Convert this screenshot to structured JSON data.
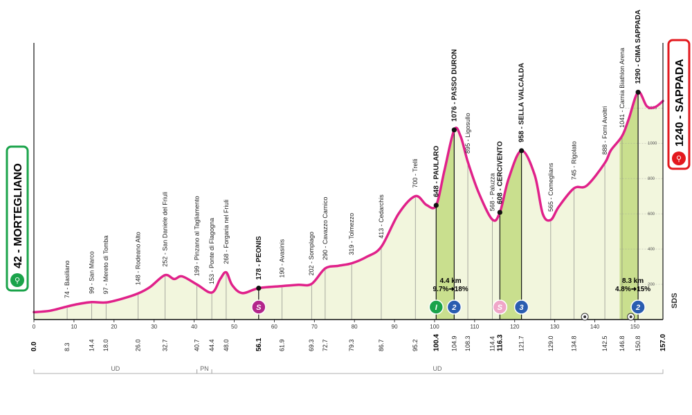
{
  "chart_data": {
    "type": "area",
    "colors": {
      "profile": "#e0218a",
      "fill": "#f2f6dd",
      "climb_fill": "#c9df8e",
      "start": "#1aa34a",
      "finish": "#e3191e",
      "sprint": "#b3268b",
      "kom": "#2a5db0",
      "cross": "#e91e8c"
    },
    "start": {
      "altitude": "42",
      "name": "MORTEGLIANO"
    },
    "finish": {
      "altitude": "1240",
      "name": "SAPPADA"
    },
    "xlim": [
      0,
      157.0
    ],
    "ylim": [
      0,
      1350
    ],
    "x_ticks": [
      0,
      10,
      20,
      30,
      40,
      50,
      60,
      70,
      80,
      90,
      100,
      110,
      120,
      130,
      140,
      150
    ],
    "y_ticks": [
      200,
      400,
      600,
      800,
      1000,
      1200
    ],
    "profile": [
      {
        "x": 0,
        "y": 42
      },
      {
        "x": 4,
        "y": 50
      },
      {
        "x": 8.3,
        "y": 74
      },
      {
        "x": 11,
        "y": 88
      },
      {
        "x": 14.4,
        "y": 99
      },
      {
        "x": 18.0,
        "y": 97
      },
      {
        "x": 22,
        "y": 118
      },
      {
        "x": 26.0,
        "y": 148
      },
      {
        "x": 29,
        "y": 185
      },
      {
        "x": 32.7,
        "y": 252
      },
      {
        "x": 35,
        "y": 230
      },
      {
        "x": 37,
        "y": 245
      },
      {
        "x": 40.7,
        "y": 199
      },
      {
        "x": 44.4,
        "y": 153
      },
      {
        "x": 46.5,
        "y": 230
      },
      {
        "x": 48.0,
        "y": 268
      },
      {
        "x": 49.5,
        "y": 195
      },
      {
        "x": 52,
        "y": 150
      },
      {
        "x": 56.1,
        "y": 178
      },
      {
        "x": 61.9,
        "y": 190
      },
      {
        "x": 66,
        "y": 197
      },
      {
        "x": 69.3,
        "y": 202
      },
      {
        "x": 72.7,
        "y": 290
      },
      {
        "x": 76,
        "y": 305
      },
      {
        "x": 79.3,
        "y": 319
      },
      {
        "x": 83,
        "y": 355
      },
      {
        "x": 86.7,
        "y": 413
      },
      {
        "x": 91,
        "y": 600
      },
      {
        "x": 95.2,
        "y": 700
      },
      {
        "x": 98,
        "y": 650
      },
      {
        "x": 100.4,
        "y": 648
      },
      {
        "x": 102.5,
        "y": 850
      },
      {
        "x": 104.9,
        "y": 1076
      },
      {
        "x": 106.5,
        "y": 1040
      },
      {
        "x": 108.3,
        "y": 895
      },
      {
        "x": 111,
        "y": 720
      },
      {
        "x": 114.4,
        "y": 568
      },
      {
        "x": 116.3,
        "y": 608
      },
      {
        "x": 118.5,
        "y": 800
      },
      {
        "x": 121.7,
        "y": 958
      },
      {
        "x": 125,
        "y": 820
      },
      {
        "x": 127,
        "y": 600
      },
      {
        "x": 129.0,
        "y": 565
      },
      {
        "x": 131,
        "y": 640
      },
      {
        "x": 134.8,
        "y": 745
      },
      {
        "x": 138,
        "y": 760
      },
      {
        "x": 142.5,
        "y": 888
      },
      {
        "x": 144,
        "y": 960
      },
      {
        "x": 146.8,
        "y": 1041
      },
      {
        "x": 148.5,
        "y": 1140
      },
      {
        "x": 150.8,
        "y": 1290
      },
      {
        "x": 153,
        "y": 1210
      },
      {
        "x": 155,
        "y": 1205
      },
      {
        "x": 157.0,
        "y": 1240
      }
    ],
    "climb_zones": [
      [
        100.4,
        104.9
      ],
      [
        116.3,
        121.7
      ],
      [
        146.2,
        150.8
      ]
    ],
    "locations": [
      {
        "x": 8.3,
        "alt": "74",
        "name": "Basiliano",
        "type": "normal"
      },
      {
        "x": 14.4,
        "alt": "99",
        "name": "San Marco",
        "type": "normal"
      },
      {
        "x": 18.0,
        "alt": "97",
        "name": "Mereto di Tomba",
        "type": "normal"
      },
      {
        "x": 26.0,
        "alt": "148",
        "name": "Rodeano Alto",
        "type": "normal"
      },
      {
        "x": 32.7,
        "alt": "252",
        "name": "San Daniele del Friuli",
        "type": "normal"
      },
      {
        "x": 40.7,
        "alt": "199",
        "name": "Pinzano al Tagliamento",
        "type": "normal"
      },
      {
        "x": 44.4,
        "alt": "153",
        "name": "Ponte di Flagogna",
        "type": "normal"
      },
      {
        "x": 48.0,
        "alt": "268",
        "name": "Forgaria nel Friuli",
        "type": "normal"
      },
      {
        "x": 56.1,
        "alt": "178",
        "name": "PEONIS",
        "type": "bold"
      },
      {
        "x": 61.9,
        "alt": "190",
        "name": "Avasinis",
        "type": "normal"
      },
      {
        "x": 69.3,
        "alt": "202",
        "name": "Somplago",
        "type": "normal"
      },
      {
        "x": 72.7,
        "alt": "290",
        "name": "Cavazzo Carnico",
        "type": "normal"
      },
      {
        "x": 79.3,
        "alt": "319",
        "name": "Tolmezzo",
        "type": "normal"
      },
      {
        "x": 86.7,
        "alt": "413",
        "name": "Cedarchis",
        "type": "normal"
      },
      {
        "x": 95.2,
        "alt": "700",
        "name": "Trelli",
        "type": "normal"
      },
      {
        "x": 100.4,
        "alt": "648",
        "name": "PAULARO",
        "type": "bold"
      },
      {
        "x": 104.9,
        "alt": "1076",
        "name": "PASSO DURON",
        "type": "bold"
      },
      {
        "x": 108.3,
        "alt": "895",
        "name": "Ligosullo",
        "type": "normal"
      },
      {
        "x": 114.4,
        "alt": "568",
        "name": "Paluzza",
        "type": "normal"
      },
      {
        "x": 116.3,
        "alt": "608",
        "name": "CERCIVENTO",
        "type": "bold"
      },
      {
        "x": 121.7,
        "alt": "958",
        "name": "SELLA VALCALDA",
        "type": "bold"
      },
      {
        "x": 129.0,
        "alt": "565",
        "name": "Comeglians",
        "type": "normal"
      },
      {
        "x": 134.8,
        "alt": "745",
        "name": "Rigolato",
        "type": "normal"
      },
      {
        "x": 142.5,
        "alt": "888",
        "name": "Forni Avoltri",
        "type": "normal"
      },
      {
        "x": 146.8,
        "alt": "1041",
        "name": "Carnia Biathlon Arena",
        "type": "normal"
      },
      {
        "x": 150.8,
        "alt": "1290",
        "name": "CIMA SAPPADA",
        "type": "bold"
      }
    ],
    "bold_points": [
      56.1,
      100.4,
      104.9,
      116.3,
      121.7,
      150.8
    ],
    "km_points": [
      {
        "x": 0,
        "label": "0.0",
        "bold": true
      },
      {
        "x": 8.3,
        "label": "8.3",
        "bold": false
      },
      {
        "x": 14.4,
        "label": "14.4",
        "bold": false
      },
      {
        "x": 18.0,
        "label": "18.0",
        "bold": false
      },
      {
        "x": 26.0,
        "label": "26.0",
        "bold": false
      },
      {
        "x": 32.7,
        "label": "32.7",
        "bold": false
      },
      {
        "x": 40.7,
        "label": "40.7",
        "bold": false
      },
      {
        "x": 44.4,
        "label": "44.4",
        "bold": false
      },
      {
        "x": 48.0,
        "label": "48.0",
        "bold": false
      },
      {
        "x": 56.1,
        "label": "56.1",
        "bold": true
      },
      {
        "x": 61.9,
        "label": "61.9",
        "bold": false
      },
      {
        "x": 69.3,
        "label": "69.3",
        "bold": false
      },
      {
        "x": 72.7,
        "label": "72.7",
        "bold": false
      },
      {
        "x": 79.3,
        "label": "79.3",
        "bold": false
      },
      {
        "x": 86.7,
        "label": "86.7",
        "bold": false
      },
      {
        "x": 95.2,
        "label": "95.2",
        "bold": false
      },
      {
        "x": 100.4,
        "label": "100.4",
        "bold": true
      },
      {
        "x": 104.9,
        "label": "104.9",
        "bold": false
      },
      {
        "x": 108.3,
        "label": "108.3",
        "bold": false
      },
      {
        "x": 114.4,
        "label": "114.4",
        "bold": false
      },
      {
        "x": 116.3,
        "label": "116.3",
        "bold": true
      },
      {
        "x": 121.7,
        "label": "121.7",
        "bold": false
      },
      {
        "x": 129.0,
        "label": "129.0",
        "bold": false
      },
      {
        "x": 134.8,
        "label": "134.8",
        "bold": false
      },
      {
        "x": 142.5,
        "label": "142.5",
        "bold": false
      },
      {
        "x": 146.8,
        "label": "146.8",
        "bold": false
      },
      {
        "x": 150.8,
        "label": "150.8",
        "bold": false
      },
      {
        "x": 157.0,
        "label": "157.0",
        "bold": true
      }
    ],
    "markers": [
      {
        "x": 56.1,
        "type": "sprint",
        "label": "S"
      },
      {
        "x": 100.4,
        "type": "start-climb",
        "label": "I"
      },
      {
        "x": 104.9,
        "type": "kom",
        "label": "2"
      },
      {
        "x": 116.3,
        "type": "sprint-alt",
        "label": "S"
      },
      {
        "x": 121.7,
        "type": "kom",
        "label": "3"
      },
      {
        "x": 150.8,
        "type": "kom",
        "label": "2"
      }
    ],
    "small_icons": [
      {
        "x": 137.5
      },
      {
        "x": 149.0
      }
    ],
    "climb_infos": [
      {
        "x": 104.0,
        "line1": "4.4 km",
        "line2": "9.7%➜18%"
      },
      {
        "x": 149.5,
        "line1": "8.3 km",
        "line2": "4.8%➜15%"
      }
    ],
    "regions": [
      {
        "label": "UD",
        "x_from": 0,
        "x_to": 40.7
      },
      {
        "label": "PN",
        "x_from": 40.7,
        "x_to": 44.4
      },
      {
        "label": "UD",
        "x_from": 44.4,
        "x_to": 157.0
      }
    ],
    "logo_text": "SDS"
  }
}
